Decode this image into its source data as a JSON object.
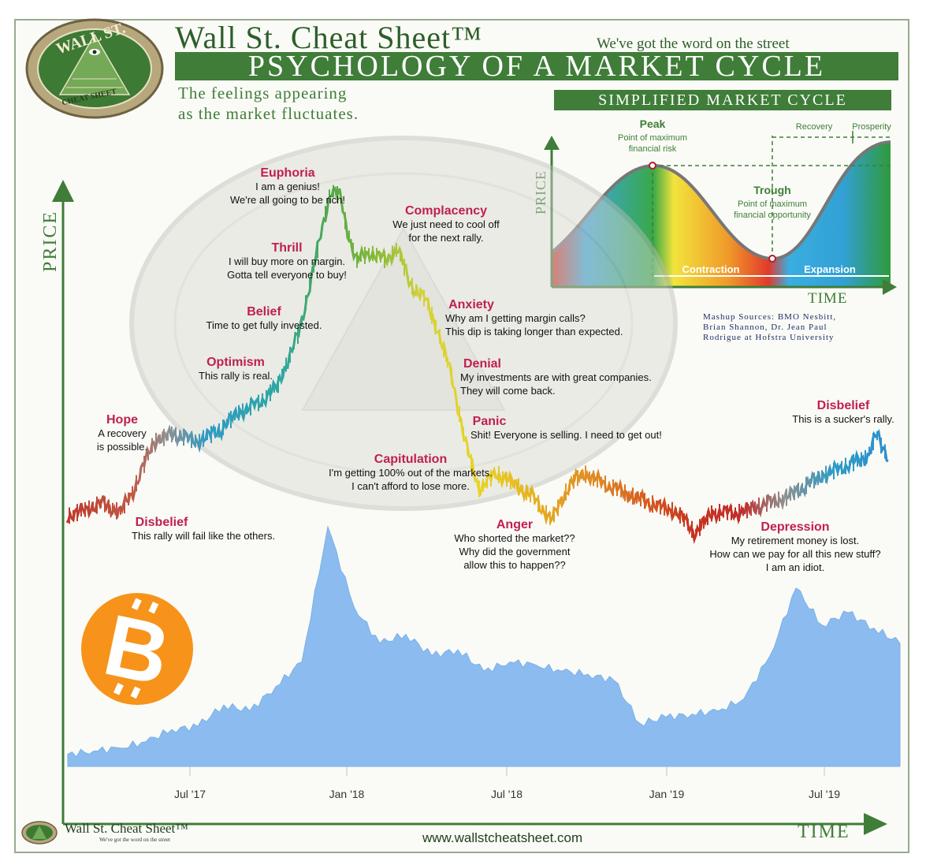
{
  "header": {
    "title": "Wall St. Cheat Sheet™",
    "tagline": "We've got the word on the street",
    "banner": "PSYCHOLOGY OF A MARKET CYCLE",
    "subtitle_line1": "The feelings appearing",
    "subtitle_line2": "as the market fluctuates."
  },
  "logo": {
    "top_text": "WALL ST.",
    "bottom_text": "CHEAT SHEET"
  },
  "simplified": {
    "banner": "SIMPLIFIED MARKET CYCLE",
    "price_label": "PRICE",
    "time_label": "TIME",
    "peak_title": "Peak",
    "peak_line1": "Point of maximum",
    "peak_line2": "financial risk",
    "trough_title": "Trough",
    "trough_line1": "Point of maximum",
    "trough_line2": "financial opportunity",
    "recovery": "Recovery",
    "prosperity": "Prosperity",
    "contraction": "Contraction",
    "expansion": "Expansion"
  },
  "sources": {
    "line1": "Mashup Sources: BMO Nesbitt,",
    "line2": "Brian Shannon, Dr. Jean Paul",
    "line3": "Rodrigue at Hofstra University"
  },
  "axes": {
    "price": "PRICE",
    "time": "TIME"
  },
  "phases": [
    {
      "title": "Euphoria",
      "lines": [
        "I am a genius!",
        "We're all going to be rich!"
      ]
    },
    {
      "title": "Complacency",
      "lines": [
        "We just need to cool off",
        "for the next rally."
      ]
    },
    {
      "title": "Thrill",
      "lines": [
        "I will buy more on margin.",
        "Gotta tell everyone to buy!"
      ]
    },
    {
      "title": "Anxiety",
      "lines": [
        "Why am I getting margin calls?",
        "This dip is taking longer than expected."
      ]
    },
    {
      "title": "Belief",
      "lines": [
        "Time to get fully invested."
      ]
    },
    {
      "title": "Denial",
      "lines": [
        "My investments are with great companies.",
        "They will come back."
      ]
    },
    {
      "title": "Optimism",
      "lines": [
        "This rally is real."
      ]
    },
    {
      "title": "Panic",
      "lines": [
        "Shit! Everyone is selling. I need to get out!"
      ]
    },
    {
      "title": "Hope",
      "lines": [
        "A recovery",
        "is possible."
      ]
    },
    {
      "title": "Capitulation",
      "lines": [
        "I'm getting 100% out of the markets.",
        "I can't afford to lose more."
      ]
    },
    {
      "title": "Disbelief",
      "lines": [
        "This rally will fail like the others."
      ]
    },
    {
      "title": "Anger",
      "lines": [
        "Who shorted the market??",
        "Why did the government",
        "allow this to happen??"
      ]
    },
    {
      "title": "Depression",
      "lines": [
        "My retirement money is lost.",
        "How can we pay for all this new stuff?",
        "I am an idiot."
      ]
    },
    {
      "title": "Disbelief",
      "lines": [
        "This is a sucker's rally."
      ]
    }
  ],
  "footer": {
    "brand": "Wall St. Cheat Sheet™",
    "tag": "We've got the word on the street",
    "url": "www.wallstcheatsheet.com"
  },
  "colors": {
    "brand_green": "#3f7d39",
    "label_red": "#c0204e",
    "bitcoin_orange": "#f7931a",
    "area_blue": "#8cbcef"
  },
  "chart_data": {
    "type": "area",
    "x_ticks": [
      "Jul '17",
      "Jan '18",
      "Jul '18",
      "Jan '19",
      "Jul '19"
    ],
    "note": "Bitcoin price, relative scale (no y-axis values printed)",
    "x": [
      "2017-02",
      "2017-03",
      "2017-04",
      "2017-05",
      "2017-06",
      "2017-07",
      "2017-08",
      "2017-09",
      "2017-10",
      "2017-11",
      "2017-12",
      "2018-01",
      "2018-02",
      "2018-03",
      "2018-04",
      "2018-05",
      "2018-06",
      "2018-07",
      "2018-08",
      "2018-09",
      "2018-10",
      "2018-11",
      "2018-12",
      "2019-01",
      "2019-02",
      "2019-03",
      "2019-04",
      "2019-05",
      "2019-06",
      "2019-07",
      "2019-08",
      "2019-09",
      "2019-10"
    ],
    "values": [
      4,
      5,
      6,
      8,
      12,
      13,
      20,
      18,
      26,
      34,
      78,
      52,
      40,
      43,
      36,
      38,
      31,
      34,
      33,
      31,
      30,
      28,
      14,
      16,
      17,
      18,
      22,
      36,
      58,
      46,
      50,
      45,
      40
    ]
  }
}
